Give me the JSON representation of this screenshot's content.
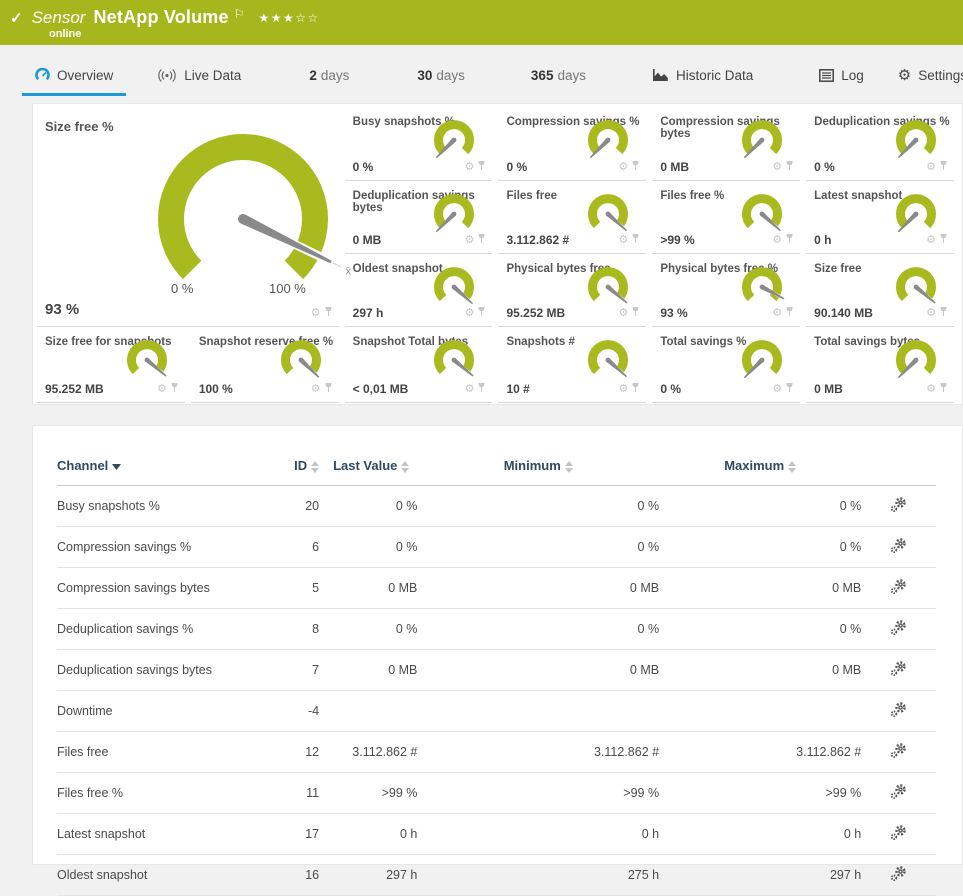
{
  "colors": {
    "green": "#a8ba1e",
    "blue": "#1d9ad6",
    "header_text": "#2e4a62",
    "needle": "#8a8a8a"
  },
  "topbar": {
    "check_icon": "check-icon",
    "type_label": "Sensor",
    "title": "NetApp Volume",
    "flag_icon": "flag-icon",
    "stars": "★★★☆☆",
    "status": "online"
  },
  "tabs": [
    {
      "label": "Overview",
      "icon": "gauge-icon",
      "active": true
    },
    {
      "label": "Live Data",
      "icon": "broadcast-icon",
      "active": false
    },
    {
      "num": "2",
      "suffix": "days",
      "active": false
    },
    {
      "num": "30",
      "suffix": "days",
      "active": false
    },
    {
      "num": "365",
      "suffix": "days",
      "active": false
    },
    {
      "label": "Historic Data",
      "icon": "area-chart-icon",
      "active": false
    },
    {
      "label": "Log",
      "icon": "log-icon",
      "active": false
    },
    {
      "label": "Settings",
      "icon": "gear-icon",
      "active": false
    }
  ],
  "main_gauge": {
    "title": "Size free %",
    "value": "93 %",
    "min_label": "0 %",
    "max_label": "100 %",
    "avg_marker": "x̄",
    "needle_deg": 116
  },
  "gauges": [
    {
      "title": "Busy snapshots %",
      "value": "0 %",
      "needle_deg": -135
    },
    {
      "title": "Compression savings %",
      "value": "0 %",
      "needle_deg": -135
    },
    {
      "title": "Compression savings bytes",
      "value": "0 MB",
      "needle_deg": -135
    },
    {
      "title": "Deduplication savings %",
      "value": "0 %",
      "needle_deg": -135
    },
    {
      "title": "Deduplication savings bytes",
      "value": "0 MB",
      "needle_deg": -135
    },
    {
      "title": "Files free",
      "value": "3.112.862 #",
      "needle_deg": 132
    },
    {
      "title": "Files free %",
      "value": ">99 %",
      "needle_deg": 132
    },
    {
      "title": "Latest snapshot",
      "value": "0 h",
      "needle_deg": -135
    },
    {
      "title": "Oldest snapshot",
      "value": "297 h",
      "needle_deg": 132
    },
    {
      "title": "Physical bytes free",
      "value": "95.252 MB",
      "needle_deg": 130
    },
    {
      "title": "Physical bytes free %",
      "value": "93 %",
      "needle_deg": 118
    },
    {
      "title": "Size free",
      "value": "90.140 MB",
      "needle_deg": 130
    },
    {
      "title": "Size free for snapshots",
      "value": "95.252 MB",
      "needle_deg": 130
    },
    {
      "title": "Snapshot reserve free %",
      "value": "100 %",
      "needle_deg": 134
    },
    {
      "title": "Snapshot Total bytes",
      "value": "< 0,01 MB",
      "needle_deg": 130
    },
    {
      "title": "Snapshots #",
      "value": "10 #",
      "needle_deg": 132
    },
    {
      "title": "Total savings %",
      "value": "0 %",
      "needle_deg": -135
    },
    {
      "title": "Total savings bytes",
      "value": "0 MB",
      "needle_deg": -135
    }
  ],
  "table": {
    "headers": [
      {
        "label": "Channel",
        "sort": "active-desc"
      },
      {
        "label": "ID",
        "sort": "both"
      },
      {
        "label": "Last Value",
        "sort": "both"
      },
      {
        "label": "Minimum",
        "sort": "both"
      },
      {
        "label": "Maximum",
        "sort": "both"
      },
      {
        "label": "",
        "sort": "none"
      }
    ],
    "rows": [
      {
        "channel": "Busy snapshots %",
        "id": "20",
        "last": "0 %",
        "min": "0 %",
        "max": "0 %"
      },
      {
        "channel": "Compression savings %",
        "id": "6",
        "last": "0 %",
        "min": "0 %",
        "max": "0 %"
      },
      {
        "channel": "Compression savings bytes",
        "id": "5",
        "last": "0 MB",
        "min": "0 MB",
        "max": "0 MB"
      },
      {
        "channel": "Deduplication savings %",
        "id": "8",
        "last": "0 %",
        "min": "0 %",
        "max": "0 %"
      },
      {
        "channel": "Deduplication savings bytes",
        "id": "7",
        "last": "0 MB",
        "min": "0 MB",
        "max": "0 MB"
      },
      {
        "channel": "Downtime",
        "id": "-4",
        "last": "",
        "min": "",
        "max": ""
      },
      {
        "channel": "Files free",
        "id": "12",
        "last": "3.112.862 #",
        "min": "3.112.862 #",
        "max": "3.112.862 #"
      },
      {
        "channel": "Files free %",
        "id": "11",
        "last": ">99 %",
        "min": ">99 %",
        "max": ">99 %"
      },
      {
        "channel": "Latest snapshot",
        "id": "17",
        "last": "0 h",
        "min": "0 h",
        "max": "0 h"
      },
      {
        "channel": "Oldest snapshot",
        "id": "16",
        "last": "297 h",
        "min": "275 h",
        "max": "297 h"
      }
    ]
  }
}
